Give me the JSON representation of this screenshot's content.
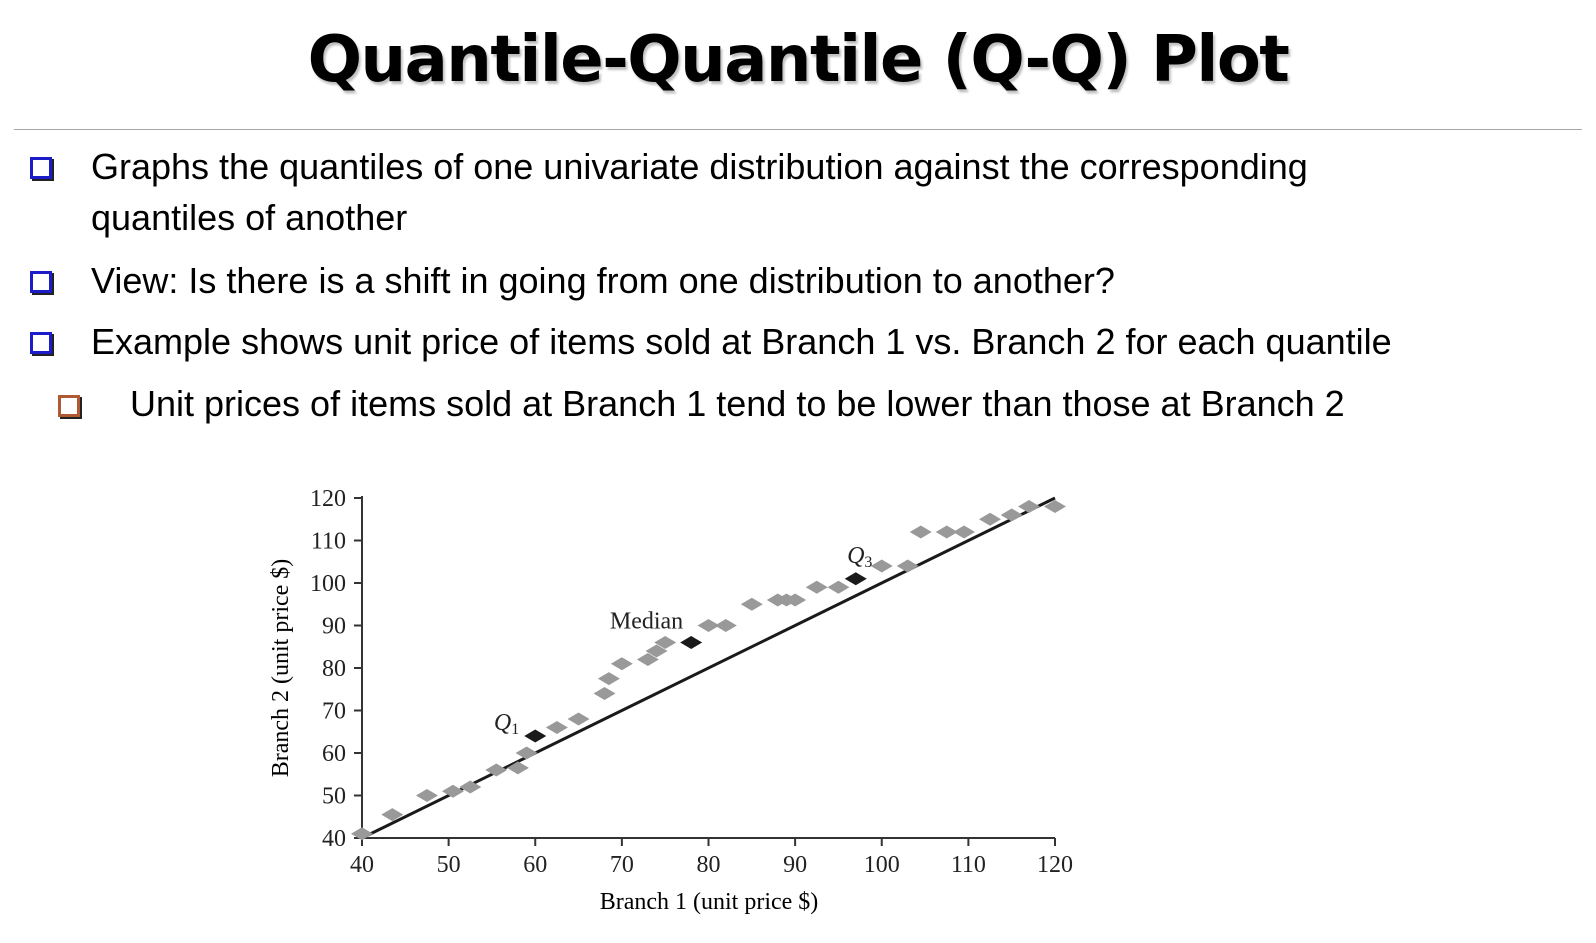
{
  "slide": {
    "title": "Quantile-Quantile (Q-Q) Plot",
    "bullets": [
      {
        "text": "Graphs the quantiles of one univariate distribution against the corresponding quantiles of another",
        "line1": "Graphs the quantiles of one univariate distribution against the corresponding",
        "line2": "quantiles of another",
        "level": 1
      },
      {
        "text": "View: Is there is a shift in going from one distribution to another?",
        "level": 1
      },
      {
        "text": "Example shows unit price of items sold at Branch 1 vs. Branch 2 for each quantile",
        "level": 1
      },
      {
        "text": "Unit prices of items sold at Branch 1 tend to be lower than those at Branch 2",
        "level": 2
      }
    ],
    "colors": {
      "bullet_box": "#1c1cc8",
      "sub_bullet_box": "#b05a34"
    }
  },
  "chart_data": {
    "type": "scatter",
    "xlabel": "Branch 1 (unit price $)",
    "ylabel": "Branch 2 (unit price $)",
    "xlim": [
      40,
      120
    ],
    "ylim": [
      40,
      120
    ],
    "xticks": [
      40,
      50,
      60,
      70,
      80,
      90,
      100,
      110,
      120
    ],
    "yticks": [
      40,
      50,
      60,
      70,
      80,
      90,
      100,
      110,
      120
    ],
    "grid": false,
    "reference_line": {
      "from": [
        40,
        40
      ],
      "to": [
        120,
        120
      ]
    },
    "points": [
      {
        "x": 40,
        "y": 41
      },
      {
        "x": 43.5,
        "y": 45.5
      },
      {
        "x": 47.5,
        "y": 50
      },
      {
        "x": 50.5,
        "y": 51
      },
      {
        "x": 52.5,
        "y": 52
      },
      {
        "x": 55.5,
        "y": 56
      },
      {
        "x": 58,
        "y": 56.5
      },
      {
        "x": 59,
        "y": 60
      },
      {
        "x": 62.5,
        "y": 66
      },
      {
        "x": 65,
        "y": 68
      },
      {
        "x": 68,
        "y": 74
      },
      {
        "x": 68.5,
        "y": 77.5
      },
      {
        "x": 70,
        "y": 81
      },
      {
        "x": 73,
        "y": 82
      },
      {
        "x": 74,
        "y": 84
      },
      {
        "x": 75,
        "y": 86
      },
      {
        "x": 80,
        "y": 90
      },
      {
        "x": 82,
        "y": 90
      },
      {
        "x": 85,
        "y": 95
      },
      {
        "x": 88,
        "y": 96
      },
      {
        "x": 89,
        "y": 96
      },
      {
        "x": 90,
        "y": 96
      },
      {
        "x": 92.5,
        "y": 99
      },
      {
        "x": 95,
        "y": 99
      },
      {
        "x": 100,
        "y": 104
      },
      {
        "x": 103,
        "y": 104
      },
      {
        "x": 104.5,
        "y": 112
      },
      {
        "x": 107.5,
        "y": 112
      },
      {
        "x": 109.5,
        "y": 112
      },
      {
        "x": 112.5,
        "y": 115
      },
      {
        "x": 115,
        "y": 116
      },
      {
        "x": 117,
        "y": 118
      },
      {
        "x": 120,
        "y": 118
      }
    ],
    "highlighted": [
      {
        "label": "Q",
        "sub": "1",
        "x": 60,
        "y": 64
      },
      {
        "label": "Median",
        "x": 78,
        "y": 86
      },
      {
        "label": "Q",
        "sub": "3",
        "x": 97,
        "y": 101
      }
    ],
    "colors": {
      "points": "#999999",
      "highlighted": "#1a1a1a",
      "line": "#1a1a1a"
    }
  }
}
